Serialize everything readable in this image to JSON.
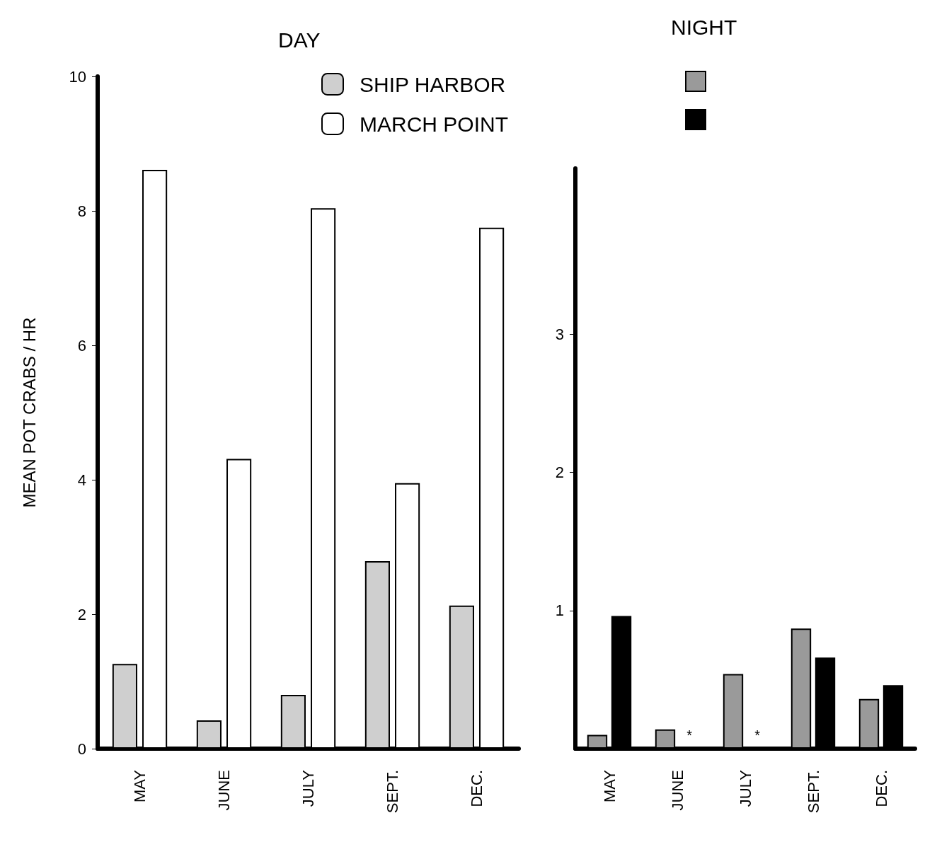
{
  "chart_data": [
    {
      "type": "bar",
      "title": "DAY",
      "ylabel": "MEAN POT CRABS / HR",
      "categories": [
        "MAY",
        "JUNE",
        "JULY",
        "SEPT.",
        "DEC."
      ],
      "series": [
        {
          "name": "SHIP HARBOR",
          "color": "#cfcfcf",
          "values": [
            1.26,
            0.42,
            0.8,
            2.79,
            2.13
          ]
        },
        {
          "name": "MARCH POINT",
          "color": "#ffffff",
          "values": [
            8.61,
            4.31,
            8.04,
            3.95,
            7.75
          ]
        }
      ],
      "ylim": [
        0,
        10
      ],
      "yticks": [
        0,
        2,
        4,
        6,
        8,
        10
      ],
      "legend": "top right"
    },
    {
      "type": "bar",
      "title": "NIGHT",
      "categories": [
        "MAY",
        "JUNE",
        "JULY",
        "SEPT.",
        "DEC."
      ],
      "series": [
        {
          "color": "#9a9a9a",
          "values": [
            0.1,
            0.14,
            0.54,
            0.87,
            0.36
          ]
        },
        {
          "color": "#000000",
          "values": [
            0.96,
            null,
            null,
            0.66,
            0.46
          ]
        }
      ],
      "ylim": [
        0,
        4.2
      ],
      "yticks": [
        1,
        2,
        3
      ],
      "annotations": [
        {
          "text": "*",
          "x": "JUNE",
          "y": 0
        },
        {
          "text": "*",
          "x": "JULY",
          "y": 0
        }
      ]
    }
  ]
}
